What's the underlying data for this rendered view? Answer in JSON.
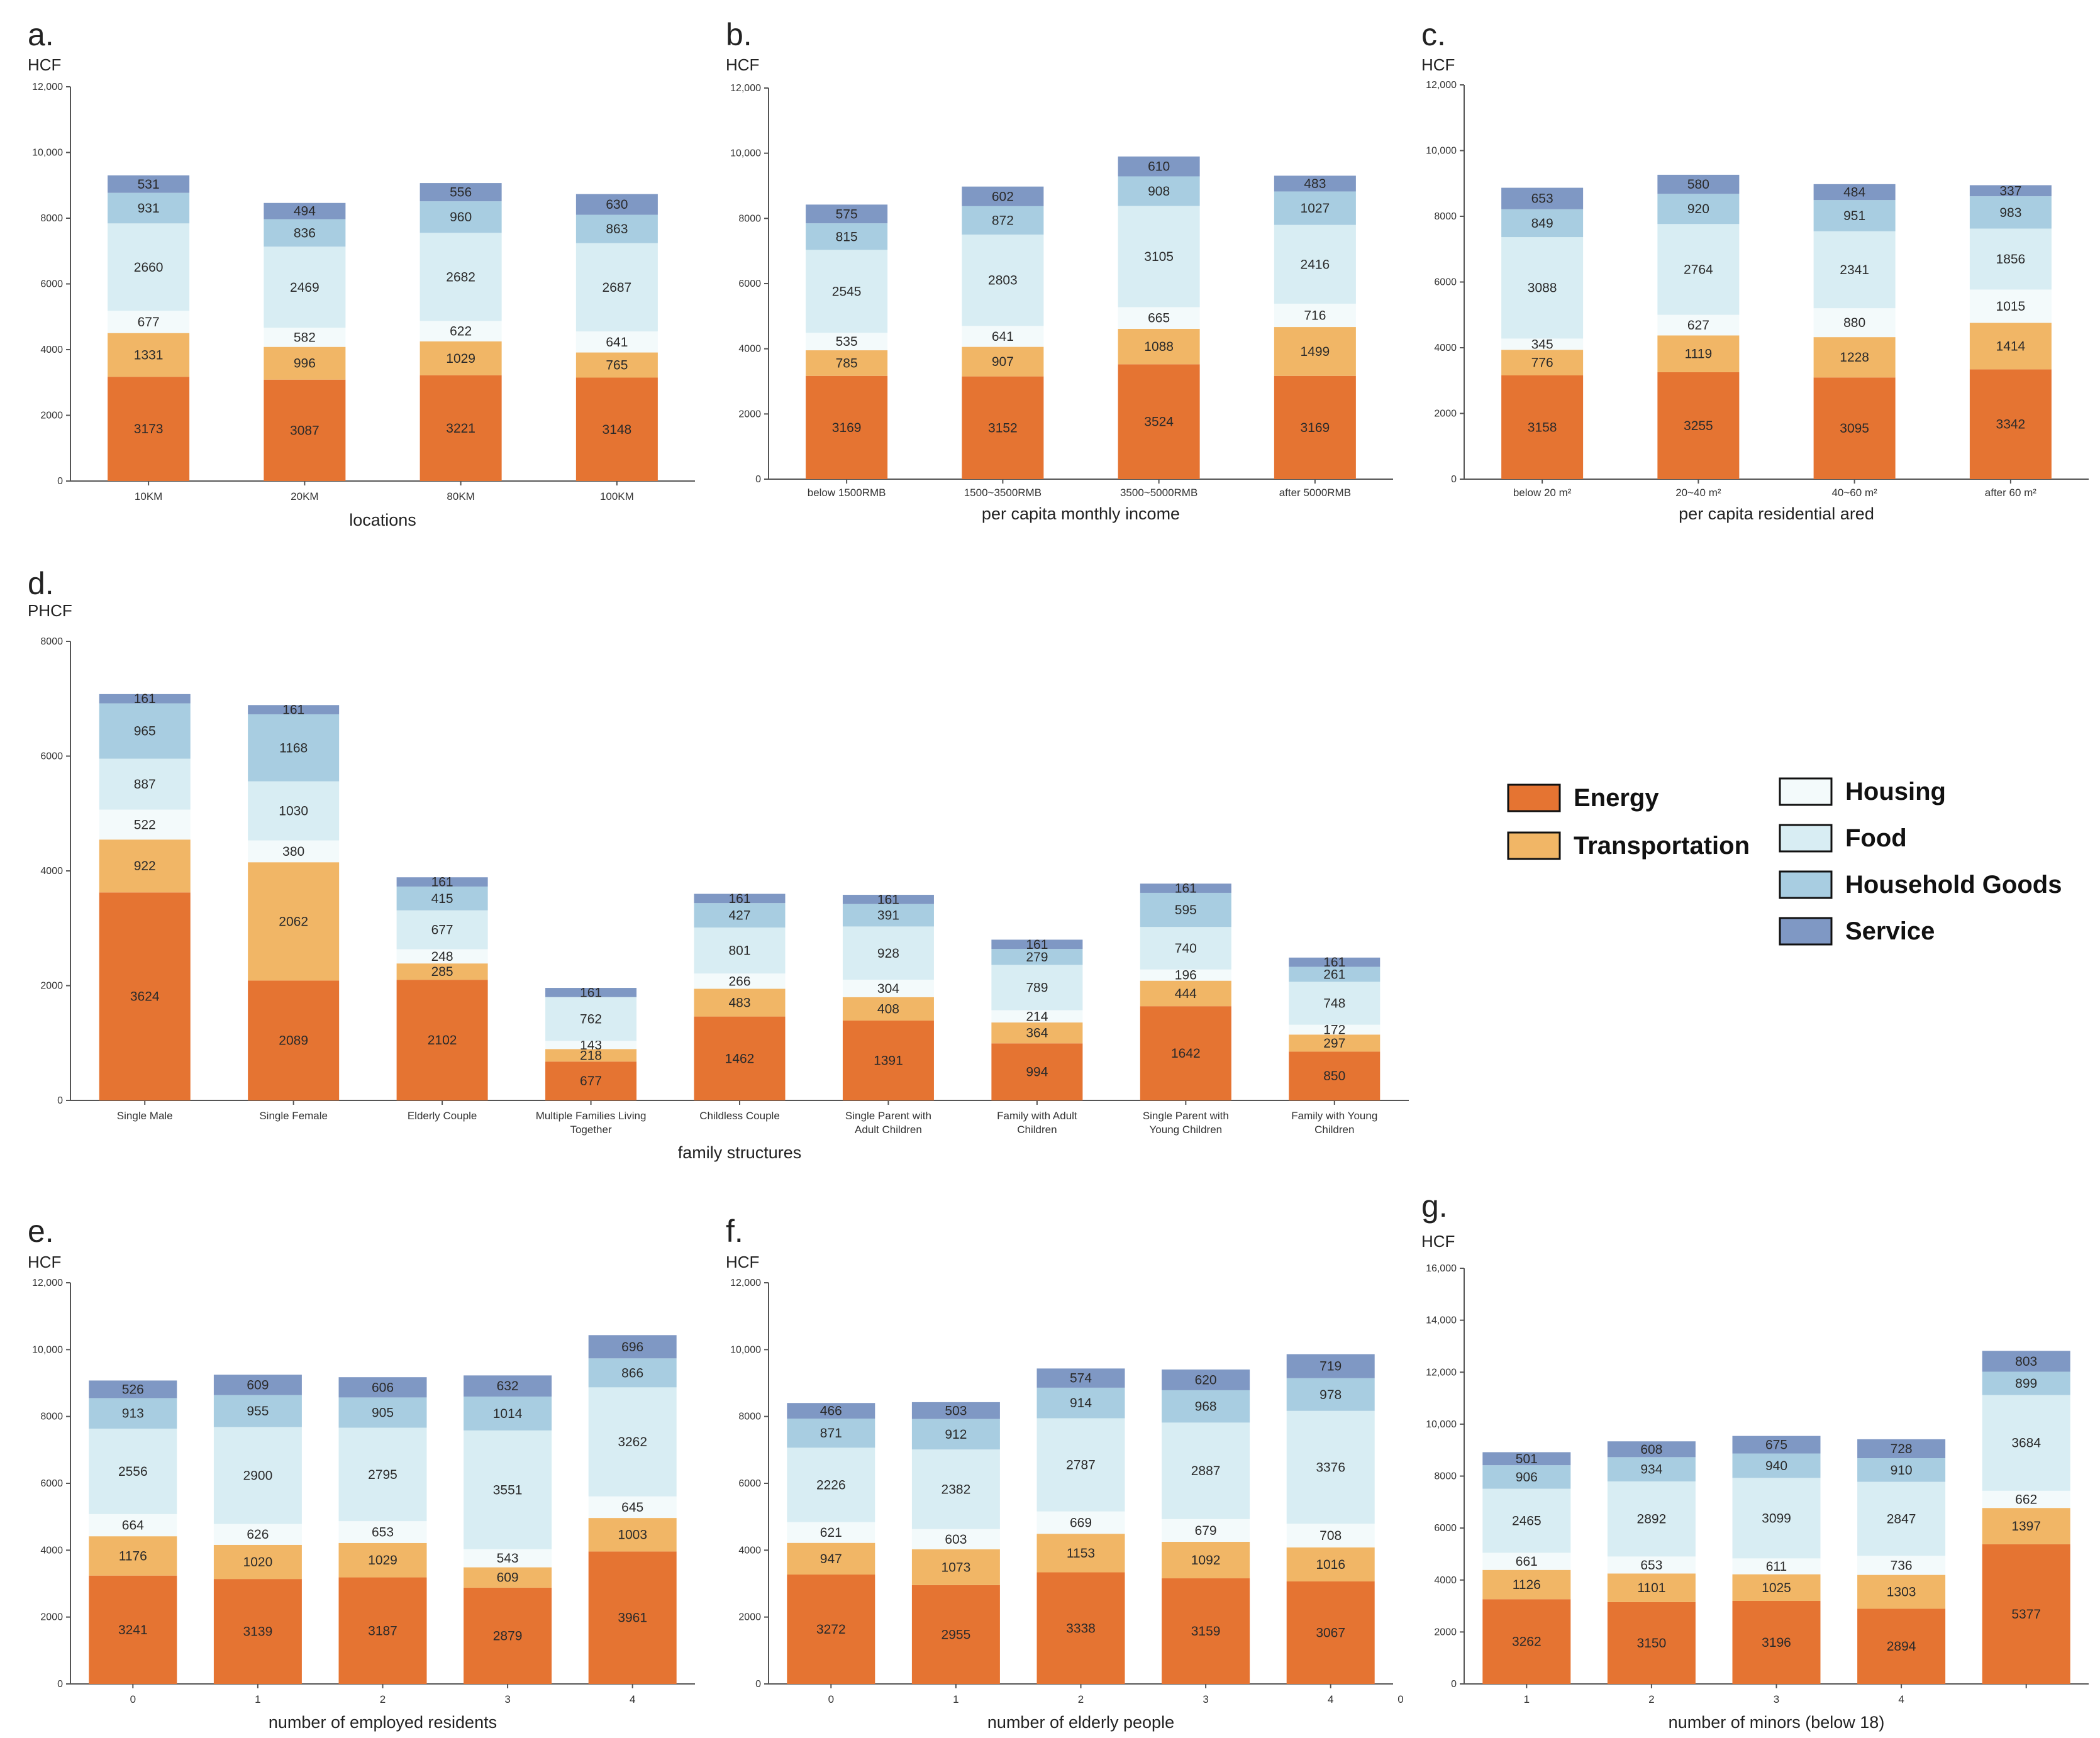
{
  "series_colors": {
    "Energy": "#e57432",
    "Transportation": "#f1b666",
    "Housing": "#f3fafb",
    "Food": "#d8edf3",
    "Household Goods": "#a8cde1",
    "Service": "#7f98c4"
  },
  "legend": {
    "left": [
      "Energy",
      "Transportation"
    ],
    "right": [
      "Housing",
      "Food",
      "Household Goods",
      "Service"
    ]
  },
  "chart_data": [
    {
      "id": "a",
      "type": "bar",
      "stacked": true,
      "letter": "a.",
      "unit": "HCF",
      "xlabel": "locations",
      "ylim": [
        0,
        12000
      ],
      "yticks": [
        "0",
        "2000",
        "4000",
        "6000",
        "8000",
        "10,000",
        "12,000"
      ],
      "categories": [
        "10KM",
        "20KM",
        "80KM",
        "100KM"
      ],
      "series": [
        {
          "name": "Energy",
          "values": [
            3173,
            3087,
            3221,
            3148
          ]
        },
        {
          "name": "Transportation",
          "values": [
            1331,
            996,
            1029,
            765
          ]
        },
        {
          "name": "Housing",
          "values": [
            677,
            582,
            622,
            641
          ]
        },
        {
          "name": "Food",
          "values": [
            2660,
            2469,
            2682,
            2687
          ]
        },
        {
          "name": "Household Goods",
          "values": [
            931,
            836,
            960,
            863
          ]
        },
        {
          "name": "Service",
          "values": [
            531,
            494,
            556,
            630
          ]
        }
      ]
    },
    {
      "id": "b",
      "type": "bar",
      "stacked": true,
      "letter": "b.",
      "unit": "HCF",
      "xlabel": "per capita monthly income",
      "ylim": [
        0,
        12000
      ],
      "yticks": [
        "0",
        "2000",
        "4000",
        "6000",
        "8000",
        "10,000",
        "12,000"
      ],
      "categories": [
        "below 1500RMB",
        "1500~3500RMB",
        "3500~5000RMB",
        "after 5000RMB"
      ],
      "series": [
        {
          "name": "Energy",
          "values": [
            3169,
            3152,
            3524,
            3169
          ]
        },
        {
          "name": "Transportation",
          "values": [
            785,
            907,
            1088,
            1499
          ]
        },
        {
          "name": "Housing",
          "values": [
            535,
            641,
            665,
            716
          ]
        },
        {
          "name": "Food",
          "values": [
            2545,
            2803,
            3105,
            2416
          ]
        },
        {
          "name": "Household Goods",
          "values": [
            815,
            872,
            908,
            1027
          ]
        },
        {
          "name": "Service",
          "values": [
            575,
            602,
            610,
            483
          ]
        }
      ]
    },
    {
      "id": "c",
      "type": "bar",
      "stacked": true,
      "letter": "c.",
      "unit": "HCF",
      "xlabel": "per capita residential ared",
      "ylim": [
        0,
        12000
      ],
      "yticks": [
        "0",
        "2000",
        "4000",
        "6000",
        "8000",
        "10,000",
        "12,000"
      ],
      "categories": [
        "below 20 m²",
        "20~40 m²",
        "40~60 m²",
        "after 60 m²"
      ],
      "series": [
        {
          "name": "Energy",
          "values": [
            3158,
            3255,
            3095,
            3342
          ]
        },
        {
          "name": "Transportation",
          "values": [
            776,
            1119,
            1228,
            1414
          ]
        },
        {
          "name": "Housing",
          "values": [
            345,
            627,
            880,
            1015
          ]
        },
        {
          "name": "Food",
          "values": [
            3088,
            2764,
            2341,
            1856
          ]
        },
        {
          "name": "Household Goods",
          "values": [
            849,
            920,
            951,
            983
          ]
        },
        {
          "name": "Service",
          "values": [
            653,
            580,
            484,
            337
          ]
        }
      ]
    },
    {
      "id": "d",
      "type": "bar",
      "stacked": true,
      "letter": "d.",
      "unit": "PHCF",
      "xlabel": "family structures",
      "ylim": [
        0,
        8000
      ],
      "yticks": [
        "0",
        "2000",
        "4000",
        "6000",
        "8000"
      ],
      "categories": [
        [
          "Single Male"
        ],
        [
          "Single Female"
        ],
        [
          "Elderly Couple"
        ],
        [
          "Multiple Families Living",
          "Together"
        ],
        [
          "Childless Couple"
        ],
        [
          "Single Parent with",
          "Adult Children"
        ],
        [
          "Family with Adult",
          "Children"
        ],
        [
          "Single Parent with",
          "Young Children"
        ],
        [
          "Family with Young",
          "Children"
        ]
      ],
      "series": [
        {
          "name": "Energy",
          "values": [
            3624,
            2089,
            2102,
            677,
            1462,
            1391,
            994,
            1642,
            850
          ]
        },
        {
          "name": "Transportation",
          "values": [
            922,
            2062,
            285,
            218,
            483,
            408,
            364,
            444,
            297
          ]
        },
        {
          "name": "Housing",
          "values": [
            522,
            380,
            248,
            143,
            266,
            304,
            214,
            196,
            172
          ]
        },
        {
          "name": "Food",
          "values": [
            887,
            1030,
            677,
            762,
            801,
            928,
            789,
            740,
            748
          ]
        },
        {
          "name": "Household Goods",
          "values": [
            965,
            1168,
            415,
            0,
            427,
            391,
            279,
            595,
            261
          ]
        },
        {
          "name": "Service",
          "values": [
            161,
            161,
            161,
            161,
            161,
            161,
            161,
            161,
            161
          ]
        }
      ]
    },
    {
      "id": "e",
      "type": "bar",
      "stacked": true,
      "letter": "e.",
      "unit": "HCF",
      "xlabel": "number of employed residents",
      "ylim": [
        0,
        12000
      ],
      "yticks": [
        "0",
        "2000",
        "4000",
        "6000",
        "8000",
        "10,000",
        "12,000"
      ],
      "categories": [
        "0",
        "1",
        "2",
        "3",
        "4"
      ],
      "series": [
        {
          "name": "Energy",
          "values": [
            3241,
            3139,
            3187,
            2879,
            3961
          ]
        },
        {
          "name": "Transportation",
          "values": [
            1176,
            1020,
            1029,
            609,
            1003
          ]
        },
        {
          "name": "Housing",
          "values": [
            664,
            626,
            653,
            543,
            645
          ]
        },
        {
          "name": "Food",
          "values": [
            2556,
            2900,
            2795,
            3551,
            3262
          ]
        },
        {
          "name": "Household Goods",
          "values": [
            913,
            955,
            905,
            1014,
            866
          ]
        },
        {
          "name": "Service",
          "values": [
            526,
            609,
            606,
            632,
            696
          ]
        }
      ]
    },
    {
      "id": "f",
      "type": "bar",
      "stacked": true,
      "letter": "f.",
      "unit": "HCF",
      "xlabel": "number of elderly people",
      "ylim": [
        0,
        12000
      ],
      "yticks": [
        "0",
        "2000",
        "4000",
        "6000",
        "8000",
        "10,000",
        "12,000"
      ],
      "categories": [
        "0",
        "1",
        "2",
        "3",
        "4"
      ],
      "extra_tick": "0",
      "series": [
        {
          "name": "Energy",
          "values": [
            3272,
            2955,
            3338,
            3159,
            3067
          ]
        },
        {
          "name": "Transportation",
          "values": [
            947,
            1073,
            1153,
            1092,
            1016
          ]
        },
        {
          "name": "Housing",
          "values": [
            621,
            603,
            669,
            679,
            708
          ]
        },
        {
          "name": "Food",
          "values": [
            2226,
            2382,
            2787,
            2887,
            3376
          ]
        },
        {
          "name": "Household Goods",
          "values": [
            871,
            912,
            914,
            968,
            978
          ]
        },
        {
          "name": "Service",
          "values": [
            466,
            503,
            574,
            620,
            719
          ]
        }
      ]
    },
    {
      "id": "g",
      "type": "bar",
      "stacked": true,
      "letter": "g.",
      "unit": "HCF",
      "xlabel": "number of minors (below 18)",
      "ylim": [
        0,
        16000
      ],
      "yticks": [
        "0",
        "2000",
        "4000",
        "6000",
        "8000",
        "10,000",
        "12,000",
        "14,000",
        "16,000"
      ],
      "categories": [
        "1",
        "2",
        "3",
        "4",
        ""
      ],
      "series": [
        {
          "name": "Energy",
          "values": [
            3262,
            3150,
            3196,
            2894,
            5377
          ]
        },
        {
          "name": "Transportation",
          "values": [
            1126,
            1101,
            1025,
            1303,
            1397
          ]
        },
        {
          "name": "Housing",
          "values": [
            661,
            653,
            611,
            736,
            662
          ]
        },
        {
          "name": "Food",
          "values": [
            2465,
            2892,
            3099,
            2847,
            3684
          ]
        },
        {
          "name": "Household Goods",
          "values": [
            906,
            934,
            940,
            910,
            899
          ]
        },
        {
          "name": "Service",
          "values": [
            501,
            608,
            675,
            728,
            803
          ]
        }
      ]
    }
  ]
}
